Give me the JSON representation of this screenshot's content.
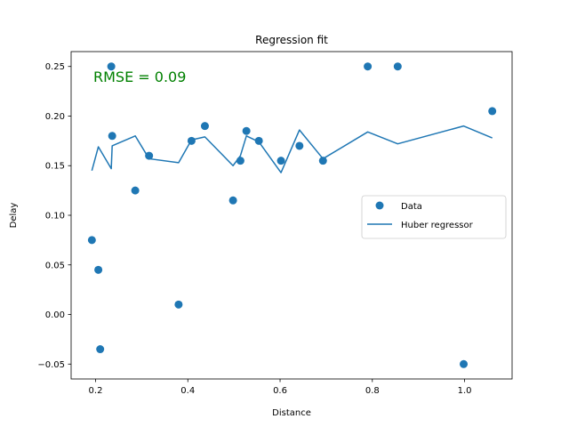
{
  "chart_data": {
    "type": "scatter",
    "title": "Regression fit",
    "xlabel": "Distance",
    "ylabel": "Delay",
    "xlim": [
      0.147,
      1.103
    ],
    "ylim": [
      -0.065,
      0.265
    ],
    "xticks": [
      0.2,
      0.4,
      0.6,
      0.8,
      1.0
    ],
    "xtick_labels": [
      "0.2",
      "0.4",
      "0.6",
      "0.8",
      "1.0"
    ],
    "yticks": [
      -0.05,
      0.0,
      0.05,
      0.1,
      0.15,
      0.2,
      0.25
    ],
    "ytick_labels": [
      "−0.05",
      "0.00",
      "0.05",
      "0.10",
      "0.15",
      "0.20",
      "0.25"
    ],
    "grid": false,
    "legend_position": "center-right",
    "annotation": {
      "text": "RMSE = 0.09",
      "color": "#008000"
    },
    "series": [
      {
        "name": "Data",
        "kind": "scatter",
        "color": "#1f77b4",
        "points": [
          [
            0.192,
            0.075
          ],
          [
            0.206,
            0.045
          ],
          [
            0.21,
            -0.035
          ],
          [
            0.234,
            0.25
          ],
          [
            0.236,
            0.18
          ],
          [
            0.286,
            0.125
          ],
          [
            0.316,
            0.16
          ],
          [
            0.38,
            0.01
          ],
          [
            0.408,
            0.175
          ],
          [
            0.437,
            0.19
          ],
          [
            0.498,
            0.115
          ],
          [
            0.514,
            0.155
          ],
          [
            0.527,
            0.185
          ],
          [
            0.554,
            0.175
          ],
          [
            0.602,
            0.155
          ],
          [
            0.642,
            0.17
          ],
          [
            0.693,
            0.155
          ],
          [
            0.79,
            0.25
          ],
          [
            0.855,
            0.25
          ],
          [
            0.998,
            -0.05
          ],
          [
            1.06,
            0.205
          ]
        ]
      },
      {
        "name": "Huber regressor",
        "kind": "line",
        "color": "#1f77b4",
        "points": [
          [
            0.192,
            0.145
          ],
          [
            0.206,
            0.169
          ],
          [
            0.234,
            0.147
          ],
          [
            0.236,
            0.17
          ],
          [
            0.286,
            0.18
          ],
          [
            0.316,
            0.157
          ],
          [
            0.38,
            0.153
          ],
          [
            0.408,
            0.176
          ],
          [
            0.437,
            0.179
          ],
          [
            0.498,
            0.15
          ],
          [
            0.514,
            0.16
          ],
          [
            0.527,
            0.18
          ],
          [
            0.554,
            0.174
          ],
          [
            0.602,
            0.143
          ],
          [
            0.642,
            0.186
          ],
          [
            0.693,
            0.157
          ],
          [
            0.79,
            0.184
          ],
          [
            0.855,
            0.172
          ],
          [
            0.998,
            0.19
          ],
          [
            1.06,
            0.178
          ]
        ]
      }
    ]
  }
}
